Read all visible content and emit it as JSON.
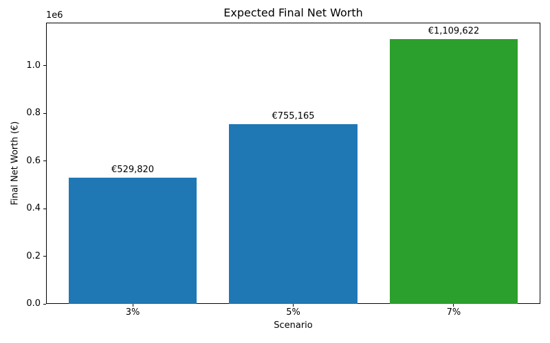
{
  "chart_data": {
    "type": "bar",
    "title": "Expected Final Net Worth",
    "xlabel": "Scenario",
    "ylabel": "Final Net Worth (€)",
    "axis_offset_label": "1e6",
    "categories": [
      "3%",
      "5%",
      "7%"
    ],
    "values": [
      529820,
      755165,
      1109622
    ],
    "bar_labels": [
      "€529,820",
      "€755,165",
      "€1,109,622"
    ],
    "bar_colors": [
      "#1f77b4",
      "#1f77b4",
      "#2ca02c"
    ],
    "ylim": [
      0,
      1180000
    ],
    "yticks": [
      0,
      200000,
      400000,
      600000,
      800000,
      1000000
    ],
    "ytick_labels": [
      "0.0",
      "0.2",
      "0.4",
      "0.6",
      "0.8",
      "1.0"
    ],
    "grid": false,
    "legend": "none",
    "text_color": "#000000",
    "spine_color": "#000000"
  }
}
